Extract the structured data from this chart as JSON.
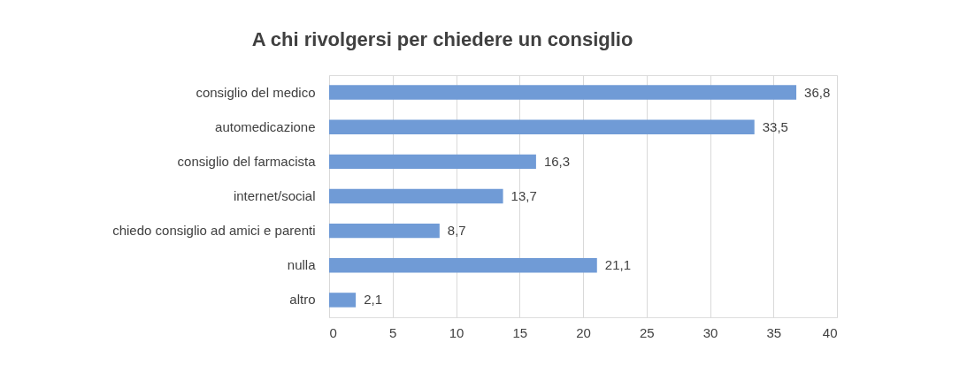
{
  "chart_data": {
    "type": "bar",
    "orientation": "horizontal",
    "title": "A chi rivolgersi per chiedere un consiglio",
    "categories": [
      "consiglio del medico",
      "automedicazione",
      "consiglio del farmacista",
      "internet/social",
      "chiedo consiglio ad amici e parenti",
      "nulla",
      "altro"
    ],
    "values": [
      36.8,
      33.5,
      16.3,
      13.7,
      8.7,
      21.1,
      2.1
    ],
    "value_labels": [
      "36,8",
      "33,5",
      "16,3",
      "13,7",
      "8,7",
      "21,1",
      "2,1"
    ],
    "color": "#709bd6",
    "xlim": [
      0,
      40
    ],
    "xticks": [
      0,
      5,
      10,
      15,
      20,
      25,
      30,
      35,
      40
    ],
    "grid": "x"
  }
}
